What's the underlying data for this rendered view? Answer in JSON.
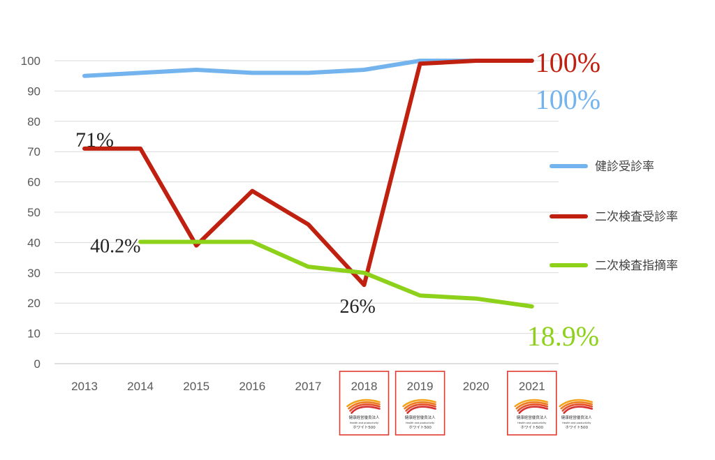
{
  "chart_data": {
    "type": "line",
    "categories": [
      "2013",
      "2014",
      "2015",
      "2016",
      "2017",
      "2018",
      "2019",
      "2020",
      "2021"
    ],
    "ylim": [
      0,
      100
    ],
    "yticks": [
      "0",
      "10",
      "20",
      "30",
      "40",
      "50",
      "60",
      "70",
      "80",
      "90",
      "100"
    ],
    "grid": true,
    "legend_position": "right",
    "series": [
      {
        "name": "健診受診率",
        "color": "#74b4ee",
        "values": [
          95,
          96,
          97,
          96,
          96,
          97,
          100,
          100,
          100
        ]
      },
      {
        "name": "二次検査受診率",
        "color": "#c0200f",
        "values": [
          71,
          71,
          39,
          57,
          46,
          26,
          99,
          100,
          100
        ]
      },
      {
        "name": "二次検査指摘率",
        "color": "#8dd11a",
        "values": [
          null,
          40.2,
          40.2,
          40.2,
          32,
          30,
          22.5,
          21.5,
          18.9
        ]
      }
    ],
    "annotations": [
      {
        "text": "100%",
        "color": "#c0200f",
        "series": 1,
        "index": 8
      },
      {
        "text": "100%",
        "color": "#74b4ee",
        "series": 0,
        "index": 8
      },
      {
        "text": "71%",
        "color": "#222222",
        "series": 1,
        "index": 0
      },
      {
        "text": "40.2%",
        "color": "#222222",
        "series": 2,
        "index": 1
      },
      {
        "text": "26%",
        "color": "#222222",
        "series": 1,
        "index": 5
      },
      {
        "text": "18.9%",
        "color": "#8dd11a",
        "series": 2,
        "index": 8
      }
    ],
    "badges": {
      "highlighted_years": [
        "2018",
        "2019",
        "2021"
      ],
      "highlight_color": "#e03a2f",
      "lines": [
        "健康経営優良法人",
        "Health and productivity",
        "ホワイト500"
      ]
    }
  }
}
